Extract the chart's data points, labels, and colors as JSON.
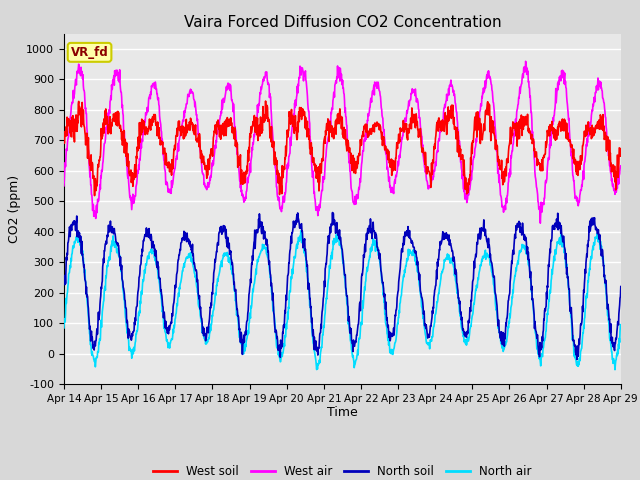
{
  "title": "Vaira Forced Diffusion CO2 Concentration",
  "xlabel": "Time",
  "ylabel": "CO2 (ppm)",
  "ylim": [
    -100,
    1050
  ],
  "yticks": [
    -100,
    0,
    100,
    200,
    300,
    400,
    500,
    600,
    700,
    800,
    900,
    1000
  ],
  "xticklabels": [
    "Apr 14",
    "Apr 15",
    "Apr 16",
    "Apr 17",
    "Apr 18",
    "Apr 19",
    "Apr 20",
    "Apr 21",
    "Apr 22",
    "Apr 23",
    "Apr 24",
    "Apr 25",
    "Apr 26",
    "Apr 27",
    "Apr 28",
    "Apr 29"
  ],
  "colors": {
    "west_soil": "#ff0000",
    "west_air": "#ff00ff",
    "north_soil": "#0000bb",
    "north_air": "#00ddff"
  },
  "legend_labels": [
    "West soil",
    "West air",
    "North soil",
    "North air"
  ],
  "annotation_text": "VR_fd",
  "annotation_box_color": "#ffffaa",
  "annotation_box_edge": "#cccc00",
  "plot_bg_color": "#e8e8e8",
  "fig_bg_color": "#d8d8d8",
  "grid_color": "#ffffff",
  "linewidth": 1.2,
  "num_days": 15,
  "pts_per_day": 96,
  "west_soil_base": 700,
  "west_soil_amp": 80,
  "west_air_base": 710,
  "west_air_amp": 190,
  "north_soil_base": 250,
  "north_soil_amp": 185,
  "north_air_base": 190,
  "north_air_amp": 175
}
